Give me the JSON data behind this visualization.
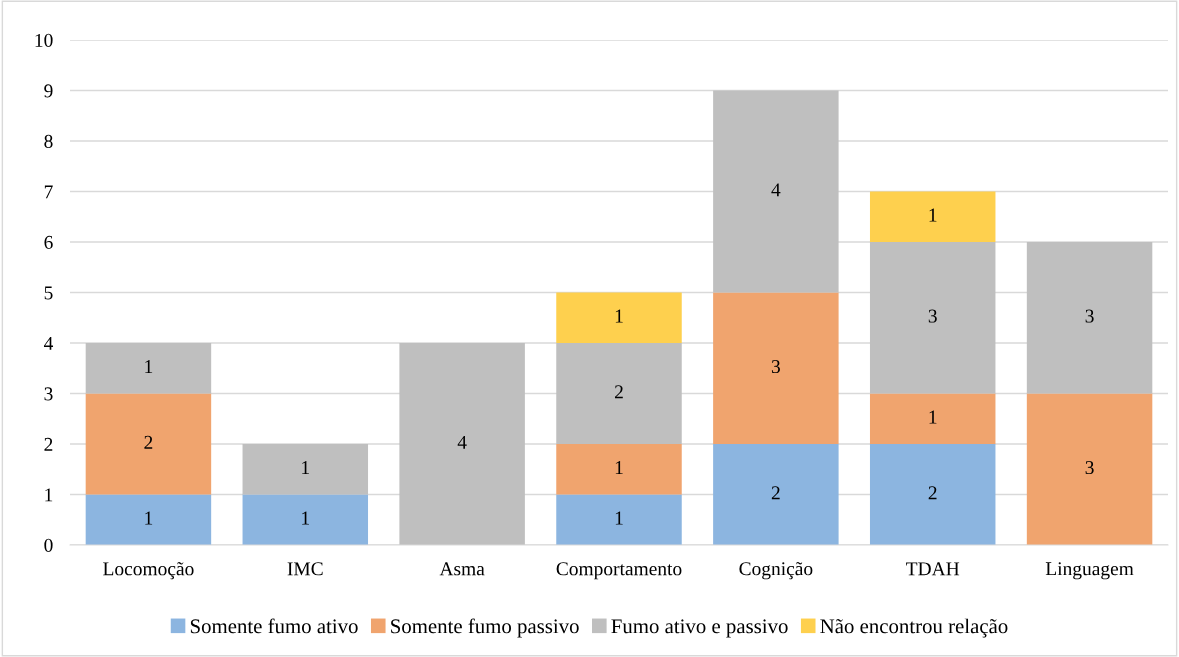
{
  "chart_data": {
    "type": "bar",
    "stacked": true,
    "categories": [
      "Locomoção",
      "IMC",
      "Asma",
      "Comportamento",
      "Cognição",
      "TDAH",
      "Linguagem"
    ],
    "series": [
      {
        "name": "Somente fumo ativo",
        "color": "#8cb5e0",
        "values": [
          1,
          1,
          null,
          1,
          2,
          2,
          null
        ]
      },
      {
        "name": "Somente fumo passivo",
        "color": "#f0a46e",
        "values": [
          2,
          null,
          null,
          1,
          3,
          1,
          3
        ]
      },
      {
        "name": "Fumo ativo e passivo",
        "color": "#bfbfbf",
        "values": [
          1,
          1,
          4,
          2,
          4,
          3,
          3
        ]
      },
      {
        "name": "Não encontrou relação",
        "color": "#fed04e",
        "values": [
          null,
          null,
          null,
          1,
          null,
          1,
          null
        ]
      }
    ],
    "ylim": [
      0,
      10
    ],
    "yticks": [
      0,
      1,
      2,
      3,
      4,
      5,
      6,
      7,
      8,
      9,
      10
    ],
    "grid": "y",
    "legend": "bottom",
    "data_labels": true
  }
}
